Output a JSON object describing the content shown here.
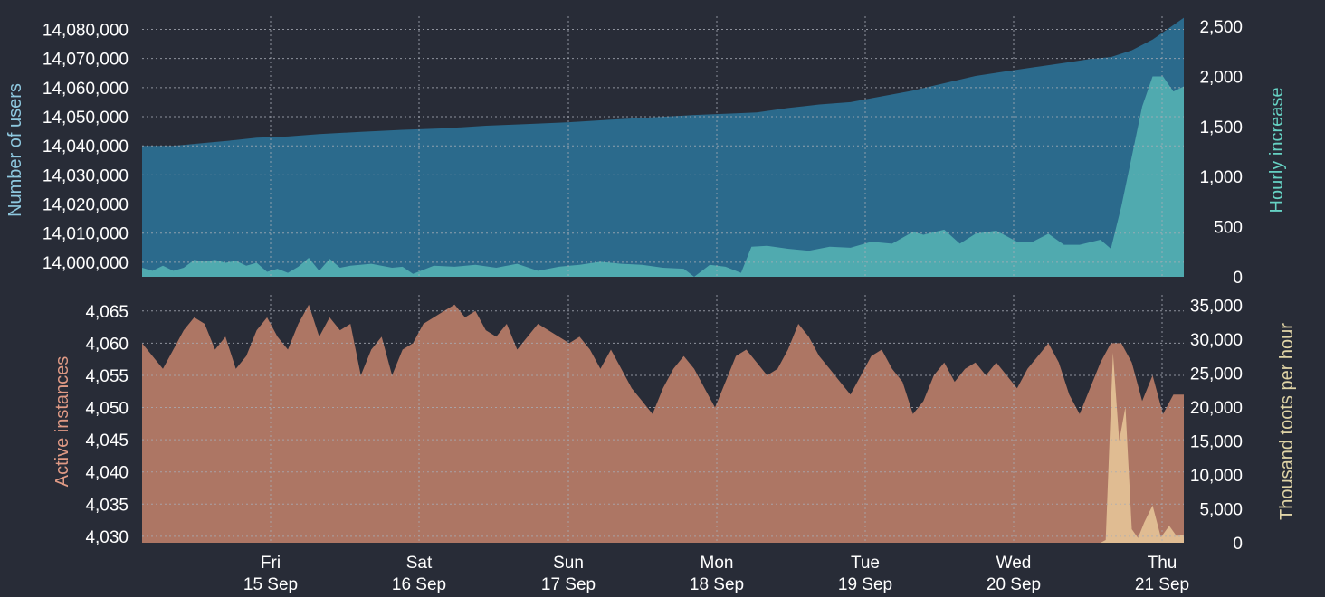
{
  "colors": {
    "background": "#282c37",
    "users_fill": "#2b6a8c",
    "hourly_fill": "#52aeb1",
    "instances_fill": "#ad7664",
    "toots_fill": "#e6c497",
    "users_label": "#8ec8df",
    "hourly_label": "#66d1c3",
    "instances_label": "#e09a85",
    "toots_label": "#e0d4a6",
    "grid": "#a8acb5"
  },
  "chart_data": [
    {
      "type": "area",
      "panel": "top",
      "ylabel": "Number of users",
      "y2label": "Hourly increase",
      "ylim": [
        13995000,
        14084500
      ],
      "y2lim": [
        0,
        2600
      ],
      "yticks": [
        "14,000,000",
        "14,010,000",
        "14,020,000",
        "14,030,000",
        "14,040,000",
        "14,050,000",
        "14,060,000",
        "14,070,000",
        "14,080,000"
      ],
      "y2ticks": [
        "0",
        "500",
        "1,000",
        "1,500",
        "2,000",
        "2,500"
      ],
      "grid": true,
      "series": [
        {
          "axis": "left",
          "points": [
            [
              0,
              14040000
            ],
            [
              0.3,
              14040000
            ],
            [
              0.6,
              14041000
            ],
            [
              0.9,
              14042000
            ],
            [
              1.1,
              14042800
            ],
            [
              1.4,
              14043200
            ],
            [
              1.7,
              14044000
            ],
            [
              2.1,
              14044800
            ],
            [
              2.5,
              14045500
            ],
            [
              2.9,
              14046000
            ],
            [
              3.3,
              14046900
            ],
            [
              3.7,
              14047500
            ],
            [
              4.1,
              14048100
            ],
            [
              4.5,
              14049000
            ],
            [
              4.9,
              14049800
            ],
            [
              5.3,
              14050600
            ],
            [
              5.7,
              14051200
            ],
            [
              5.9,
              14051500
            ],
            [
              6.2,
              14053000
            ],
            [
              6.5,
              14054200
            ],
            [
              6.8,
              14055000
            ],
            [
              7.1,
              14057000
            ],
            [
              7.4,
              14059000
            ],
            [
              7.7,
              14061500
            ],
            [
              8.0,
              14064000
            ],
            [
              8.3,
              14065600
            ],
            [
              8.6,
              14067200
            ],
            [
              8.9,
              14068700
            ],
            [
              9.1,
              14069800
            ],
            [
              9.3,
              14070500
            ],
            [
              9.5,
              14072800
            ],
            [
              9.7,
              14076500
            ],
            [
              9.85,
              14080200
            ],
            [
              10.0,
              14084000
            ]
          ]
        },
        {
          "axis": "right",
          "points": [
            [
              0,
              90
            ],
            [
              0.1,
              60
            ],
            [
              0.2,
              110
            ],
            [
              0.3,
              60
            ],
            [
              0.4,
              90
            ],
            [
              0.5,
              170
            ],
            [
              0.6,
              150
            ],
            [
              0.7,
              170
            ],
            [
              0.8,
              140
            ],
            [
              0.9,
              160
            ],
            [
              1.0,
              110
            ],
            [
              1.1,
              140
            ],
            [
              1.2,
              50
            ],
            [
              1.3,
              80
            ],
            [
              1.4,
              40
            ],
            [
              1.5,
              100
            ],
            [
              1.6,
              190
            ],
            [
              1.7,
              60
            ],
            [
              1.8,
              180
            ],
            [
              1.9,
              90
            ],
            [
              2.0,
              110
            ],
            [
              2.2,
              130
            ],
            [
              2.4,
              90
            ],
            [
              2.5,
              100
            ],
            [
              2.6,
              30
            ],
            [
              2.8,
              110
            ],
            [
              3.0,
              100
            ],
            [
              3.2,
              120
            ],
            [
              3.4,
              90
            ],
            [
              3.6,
              130
            ],
            [
              3.8,
              60
            ],
            [
              4.0,
              100
            ],
            [
              4.2,
              120
            ],
            [
              4.4,
              150
            ],
            [
              4.6,
              130
            ],
            [
              4.8,
              120
            ],
            [
              5.0,
              90
            ],
            [
              5.2,
              80
            ],
            [
              5.3,
              0
            ],
            [
              5.45,
              120
            ],
            [
              5.6,
              100
            ],
            [
              5.75,
              40
            ],
            [
              5.85,
              300
            ],
            [
              6.0,
              310
            ],
            [
              6.2,
              280
            ],
            [
              6.4,
              260
            ],
            [
              6.6,
              300
            ],
            [
              6.8,
              290
            ],
            [
              7.0,
              350
            ],
            [
              7.2,
              330
            ],
            [
              7.4,
              450
            ],
            [
              7.5,
              420
            ],
            [
              7.7,
              470
            ],
            [
              7.85,
              330
            ],
            [
              8.0,
              430
            ],
            [
              8.2,
              460
            ],
            [
              8.4,
              350
            ],
            [
              8.55,
              350
            ],
            [
              8.7,
              430
            ],
            [
              8.85,
              320
            ],
            [
              9.0,
              320
            ],
            [
              9.2,
              370
            ],
            [
              9.3,
              280
            ],
            [
              9.4,
              700
            ],
            [
              9.5,
              1200
            ],
            [
              9.6,
              1700
            ],
            [
              9.7,
              2000
            ],
            [
              9.8,
              2000
            ],
            [
              9.9,
              1850
            ],
            [
              10.0,
              1900
            ]
          ]
        }
      ]
    },
    {
      "type": "area",
      "panel": "bottom",
      "ylabel": "Active instances",
      "y2label": "Thousand toots per hour",
      "ylim": [
        4029,
        4067.5
      ],
      "y2lim": [
        0,
        36500
      ],
      "yticks": [
        "4,030",
        "4,035",
        "4,040",
        "4,045",
        "4,050",
        "4,055",
        "4,060",
        "4,065"
      ],
      "y2ticks": [
        "0",
        "5,000",
        "10,000",
        "15,000",
        "20,000",
        "25,000",
        "30,000",
        "35,000"
      ],
      "xticks": [
        {
          "day": "Fri",
          "date": "15 Sep"
        },
        {
          "day": "Sat",
          "date": "16 Sep"
        },
        {
          "day": "Sun",
          "date": "17 Sep"
        },
        {
          "day": "Mon",
          "date": "18 Sep"
        },
        {
          "day": "Tue",
          "date": "19 Sep"
        },
        {
          "day": "Wed",
          "date": "20 Sep"
        },
        {
          "day": "Thu",
          "date": "21 Sep"
        }
      ],
      "grid": true,
      "series": [
        {
          "axis": "left",
          "points": [
            [
              0,
              4060
            ],
            [
              0.1,
              4058
            ],
            [
              0.2,
              4056
            ],
            [
              0.3,
              4059
            ],
            [
              0.4,
              4062
            ],
            [
              0.5,
              4064
            ],
            [
              0.6,
              4063
            ],
            [
              0.7,
              4059
            ],
            [
              0.8,
              4061
            ],
            [
              0.9,
              4056
            ],
            [
              1.0,
              4058
            ],
            [
              1.1,
              4062
            ],
            [
              1.2,
              4064
            ],
            [
              1.3,
              4061
            ],
            [
              1.4,
              4059
            ],
            [
              1.5,
              4063
            ],
            [
              1.6,
              4066
            ],
            [
              1.7,
              4061
            ],
            [
              1.8,
              4064
            ],
            [
              1.9,
              4062
            ],
            [
              2.0,
              4063
            ],
            [
              2.1,
              4055
            ],
            [
              2.2,
              4059
            ],
            [
              2.3,
              4061
            ],
            [
              2.4,
              4055
            ],
            [
              2.5,
              4059
            ],
            [
              2.6,
              4060
            ],
            [
              2.7,
              4063
            ],
            [
              2.8,
              4064
            ],
            [
              2.9,
              4065
            ],
            [
              3.0,
              4066
            ],
            [
              3.1,
              4064
            ],
            [
              3.2,
              4065
            ],
            [
              3.3,
              4062
            ],
            [
              3.4,
              4061
            ],
            [
              3.5,
              4063
            ],
            [
              3.6,
              4059
            ],
            [
              3.7,
              4061
            ],
            [
              3.8,
              4063
            ],
            [
              3.9,
              4062
            ],
            [
              4.0,
              4061
            ],
            [
              4.1,
              4060
            ],
            [
              4.2,
              4061
            ],
            [
              4.3,
              4059
            ],
            [
              4.4,
              4056
            ],
            [
              4.5,
              4059
            ],
            [
              4.6,
              4056
            ],
            [
              4.7,
              4053
            ],
            [
              4.8,
              4051
            ],
            [
              4.9,
              4049
            ],
            [
              5.0,
              4053
            ],
            [
              5.1,
              4056
            ],
            [
              5.2,
              4058
            ],
            [
              5.3,
              4056
            ],
            [
              5.4,
              4053
            ],
            [
              5.5,
              4050
            ],
            [
              5.6,
              4054
            ],
            [
              5.7,
              4058
            ],
            [
              5.8,
              4059
            ],
            [
              5.9,
              4057
            ],
            [
              6.0,
              4055
            ],
            [
              6.1,
              4056
            ],
            [
              6.2,
              4059
            ],
            [
              6.3,
              4063
            ],
            [
              6.4,
              4061
            ],
            [
              6.5,
              4058
            ],
            [
              6.6,
              4056
            ],
            [
              6.7,
              4054
            ],
            [
              6.8,
              4052
            ],
            [
              6.9,
              4055
            ],
            [
              7.0,
              4058
            ],
            [
              7.1,
              4059
            ],
            [
              7.2,
              4056
            ],
            [
              7.3,
              4054
            ],
            [
              7.4,
              4049
            ],
            [
              7.5,
              4051
            ],
            [
              7.6,
              4055
            ],
            [
              7.7,
              4057
            ],
            [
              7.8,
              4054
            ],
            [
              7.9,
              4056
            ],
            [
              8.0,
              4057
            ],
            [
              8.1,
              4055
            ],
            [
              8.2,
              4057
            ],
            [
              8.3,
              4055
            ],
            [
              8.4,
              4053
            ],
            [
              8.5,
              4056
            ],
            [
              8.6,
              4058
            ],
            [
              8.7,
              4060
            ],
            [
              8.8,
              4057
            ],
            [
              8.9,
              4052
            ],
            [
              9.0,
              4049
            ],
            [
              9.1,
              4053
            ],
            [
              9.2,
              4057
            ],
            [
              9.3,
              4060
            ],
            [
              9.4,
              4060
            ],
            [
              9.5,
              4057
            ],
            [
              9.6,
              4051
            ],
            [
              9.7,
              4055
            ],
            [
              9.8,
              4049
            ],
            [
              9.9,
              4052
            ],
            [
              10.0,
              4052
            ]
          ]
        },
        {
          "axis": "right",
          "points": [
            [
              0,
              0
            ],
            [
              9.2,
              0
            ],
            [
              9.25,
              400
            ],
            [
              9.32,
              28000
            ],
            [
              9.38,
              15000
            ],
            [
              9.44,
              20000
            ],
            [
              9.5,
              2000
            ],
            [
              9.56,
              700
            ],
            [
              9.62,
              3000
            ],
            [
              9.7,
              5500
            ],
            [
              9.78,
              800
            ],
            [
              9.86,
              2500
            ],
            [
              9.93,
              1000
            ],
            [
              10.0,
              1200
            ]
          ]
        }
      ]
    }
  ]
}
